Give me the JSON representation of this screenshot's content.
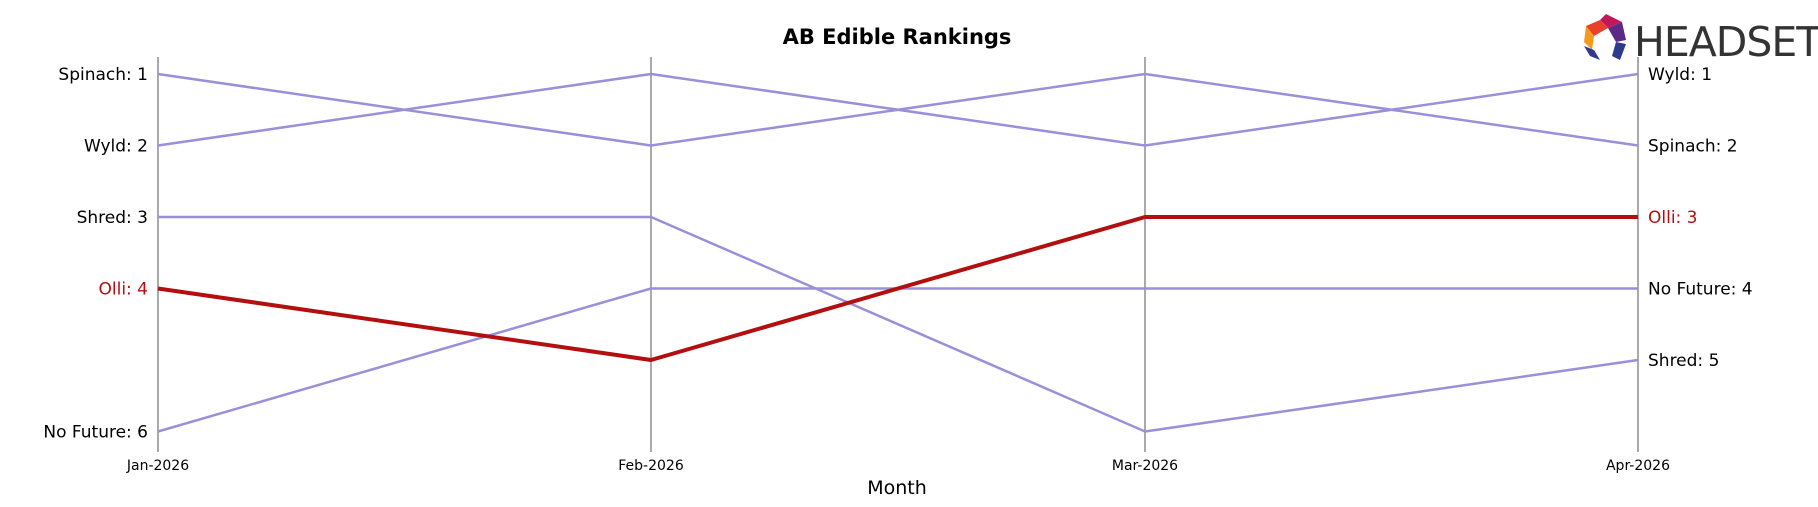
{
  "chart_data": {
    "type": "line",
    "title": "AB Edible Rankings",
    "xlabel": "Month",
    "ylabel": "",
    "x": [
      "Jan-2026",
      "Feb-2026",
      "Mar-2026",
      "Apr-2026"
    ],
    "ylim": [
      1,
      6
    ],
    "y_inverted": true,
    "grid": "vertical lines at each month",
    "series": [
      {
        "name": "Spinach",
        "values": [
          1,
          2,
          1,
          2
        ],
        "color": "#9b8fd9",
        "highlight": false
      },
      {
        "name": "Wyld",
        "values": [
          2,
          1,
          2,
          1
        ],
        "color": "#9b8fd9",
        "highlight": false
      },
      {
        "name": "Shred",
        "values": [
          3,
          3,
          6,
          5
        ],
        "color": "#9b8fd9",
        "highlight": false
      },
      {
        "name": "Olli",
        "values": [
          4,
          5,
          3,
          3
        ],
        "color": "#b30f0f",
        "highlight": true
      },
      {
        "name": "No Future",
        "values": [
          6,
          4,
          4,
          4
        ],
        "color": "#9b8fd9",
        "highlight": false
      }
    ],
    "left_labels": [
      {
        "text": "Spinach: 1",
        "rank": 1,
        "color": "#000000"
      },
      {
        "text": "Wyld: 2",
        "rank": 2,
        "color": "#000000"
      },
      {
        "text": "Shred: 3",
        "rank": 3,
        "color": "#000000"
      },
      {
        "text": "Olli: 4",
        "rank": 4,
        "color": "#b30f0f"
      },
      {
        "text": "No Future: 6",
        "rank": 6,
        "color": "#000000"
      }
    ],
    "right_labels": [
      {
        "text": "Wyld: 1",
        "rank": 1,
        "color": "#000000"
      },
      {
        "text": "Spinach: 2",
        "rank": 2,
        "color": "#000000"
      },
      {
        "text": "Olli: 3",
        "rank": 3,
        "color": "#b30f0f"
      },
      {
        "text": "No Future: 4",
        "rank": 4,
        "color": "#000000"
      },
      {
        "text": "Shred: 5",
        "rank": 5,
        "color": "#000000"
      }
    ]
  },
  "logo": {
    "text": "HEADSET",
    "colors": [
      "#e8412c",
      "#f39a1f",
      "#c2185b",
      "#5b2a86",
      "#2e3a8c"
    ]
  },
  "colors": {
    "highlight": "#b30f0f",
    "series_default": "#9b8fd9",
    "gridline": "#aaaaaa"
  }
}
